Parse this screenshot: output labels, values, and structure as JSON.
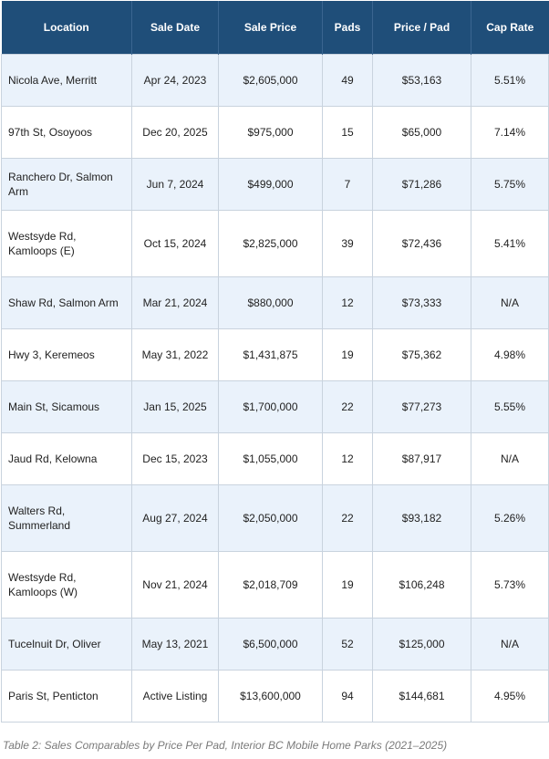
{
  "table": {
    "headers": [
      "Location",
      "Sale Date",
      "Sale Price",
      "Pads",
      "Price / Pad",
      "Cap Rate"
    ],
    "rows": [
      [
        "Nicola Ave, Merritt",
        "Apr 24, 2023",
        "$2,605,000",
        "49",
        "$53,163",
        "5.51%"
      ],
      [
        "97th St, Osoyoos",
        "Dec 20, 2025",
        "$975,000",
        "15",
        "$65,000",
        "7.14%"
      ],
      [
        "Ranchero Dr, Salmon Arm",
        "Jun 7, 2024",
        "$499,000",
        "7",
        "$71,286",
        "5.75%"
      ],
      [
        "Westsyde Rd, Kamloops (E)",
        "Oct 15, 2024",
        "$2,825,000",
        "39",
        "$72,436",
        "5.41%"
      ],
      [
        "Shaw Rd, Salmon Arm",
        "Mar 21, 2024",
        "$880,000",
        "12",
        "$73,333",
        "N/A"
      ],
      [
        "Hwy 3, Keremeos",
        "May 31, 2022",
        "$1,431,875",
        "19",
        "$75,362",
        "4.98%"
      ],
      [
        "Main St, Sicamous",
        "Jan 15, 2025",
        "$1,700,000",
        "22",
        "$77,273",
        "5.55%"
      ],
      [
        "Jaud Rd, Kelowna",
        "Dec 15, 2023",
        "$1,055,000",
        "12",
        "$87,917",
        "N/A"
      ],
      [
        "Walters Rd, Summerland",
        "Aug 27, 2024",
        "$2,050,000",
        "22",
        "$93,182",
        "5.26%"
      ],
      [
        "Westsyde Rd, Kamloops (W)",
        "Nov 21, 2024",
        "$2,018,709",
        "19",
        "$106,248",
        "5.73%"
      ],
      [
        "Tucelnuit Dr, Oliver",
        "May 13, 2021",
        "$6,500,000",
        "52",
        "$125,000",
        "N/A"
      ],
      [
        "Paris St, Penticton",
        "Active Listing",
        "$13,600,000",
        "94",
        "$144,681",
        "4.95%"
      ]
    ]
  },
  "caption": "Table 2: Sales Comparables by Price Per Pad, Interior BC Mobile Home Parks (2021–2025)",
  "colors": {
    "header_bg": "#1f4e79",
    "header_text": "#ffffff",
    "row_stripe": "#eaf2fb",
    "border": "#c9d3de",
    "caption_text": "#7a7a7a"
  }
}
